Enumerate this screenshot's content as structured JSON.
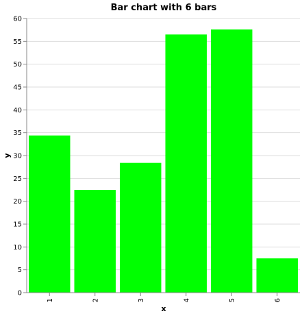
{
  "chart_data": {
    "type": "bar",
    "title": "Bar chart with 6 bars",
    "xlabel": "x",
    "ylabel": "y",
    "categories": [
      "1",
      "2",
      "3",
      "4",
      "5",
      "6"
    ],
    "values": [
      34.4,
      22.5,
      28.4,
      56.5,
      57.6,
      7.5
    ],
    "ylim": [
      0,
      60
    ],
    "yticks": [
      0,
      5,
      10,
      15,
      20,
      25,
      30,
      35,
      40,
      45,
      50,
      55,
      60
    ],
    "grid": true,
    "bar_color": "#00ff00",
    "grid_color": "#dddddd",
    "axis_color": "#888888"
  }
}
